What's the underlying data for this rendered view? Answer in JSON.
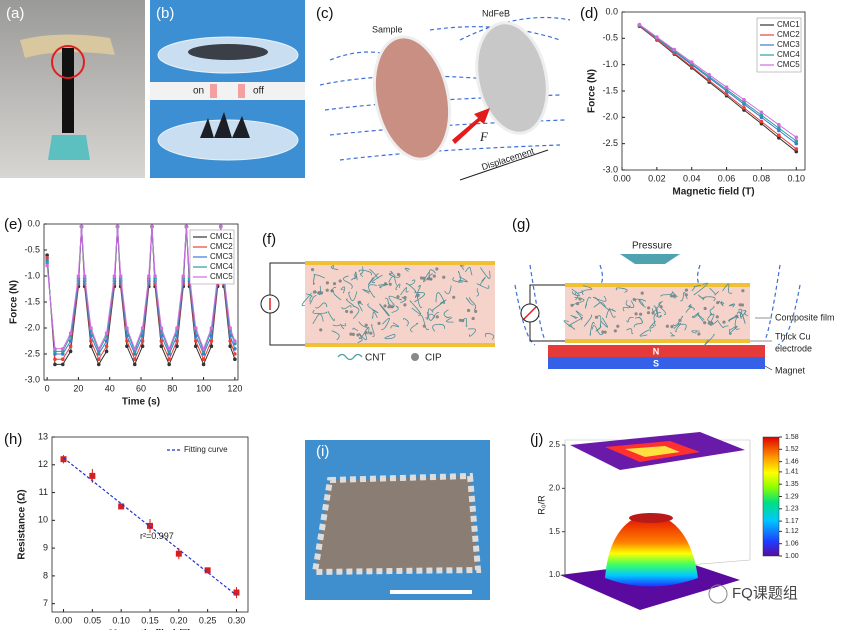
{
  "figure": {
    "panel_labels": [
      "(a)",
      "(b)",
      "(c)",
      "(d)",
      "(e)",
      "(f)",
      "(g)",
      "(h)",
      "(i)",
      "(j)"
    ],
    "b": {
      "on": "on",
      "off": "off"
    },
    "c": {
      "sample": "Sample",
      "magnet": "NdFeB",
      "force": "F",
      "displacement": "Displacement"
    },
    "f": {
      "cnt": "CNT",
      "cip": "CIP"
    },
    "g": {
      "pressure": "Pressure",
      "film": "Composite film",
      "electrode": [
        "Thick Cu",
        "electrode"
      ],
      "magnet": "Magnet",
      "north": "N",
      "south": "S"
    },
    "watermark": "FQ课题组"
  },
  "chart_data": [
    {
      "type": "line",
      "xlabel": "Magnetic field (T)",
      "ylabel": "Force (N)",
      "legend": "upper right",
      "x": [
        0.01,
        0.02,
        0.03,
        0.04,
        0.05,
        0.06,
        0.07,
        0.08,
        0.09,
        0.1
      ],
      "xlim": [
        0,
        0.105
      ],
      "ylim": [
        -3.0,
        0.0
      ],
      "xticks": [
        {
          "value": 0,
          "label": "0.00"
        },
        {
          "value": 0.02,
          "label": "0.02"
        },
        {
          "value": 0.04,
          "label": "0.04"
        },
        {
          "value": 0.06,
          "label": "0.06"
        },
        {
          "value": 0.08,
          "label": "0.08"
        },
        {
          "value": 0.1,
          "label": "0.10"
        }
      ],
      "yticks": [
        {
          "value": -3,
          "label": "-3.0"
        },
        {
          "value": -2.5,
          "label": "-2.5"
        },
        {
          "value": -2,
          "label": "-2.0"
        },
        {
          "value": -1.5,
          "label": "-1.5"
        },
        {
          "value": -1,
          "label": "-1.0"
        },
        {
          "value": -0.5,
          "label": "-0.5"
        },
        {
          "value": 0,
          "label": "0.0"
        }
      ],
      "series": [
        {
          "name": "CMC1",
          "color": "#333333",
          "values": [
            -0.27,
            -0.53,
            -0.8,
            -1.06,
            -1.33,
            -1.59,
            -1.86,
            -2.12,
            -2.39,
            -2.65
          ]
        },
        {
          "name": "CMC2",
          "color": "#e8413a",
          "values": [
            -0.26,
            -0.52,
            -0.78,
            -1.04,
            -1.3,
            -1.56,
            -1.82,
            -2.08,
            -2.34,
            -2.6
          ]
        },
        {
          "name": "CMC3",
          "color": "#3a7bd5",
          "values": [
            -0.25,
            -0.5,
            -0.75,
            -1.0,
            -1.25,
            -1.5,
            -1.75,
            -2.0,
            -2.25,
            -2.5
          ]
        },
        {
          "name": "CMC4",
          "color": "#2aa198",
          "values": [
            -0.245,
            -0.49,
            -0.735,
            -0.98,
            -1.225,
            -1.47,
            -1.715,
            -1.96,
            -2.205,
            -2.45
          ]
        },
        {
          "name": "CMC5",
          "color": "#d36ce0",
          "values": [
            -0.238,
            -0.476,
            -0.714,
            -0.952,
            -1.19,
            -1.428,
            -1.666,
            -1.904,
            -2.142,
            -2.38
          ]
        }
      ]
    },
    {
      "type": "line",
      "xlabel": "Time (s)",
      "ylabel": "Force (N)",
      "legend": "upper right",
      "x": [
        0,
        5,
        10,
        15,
        20,
        22,
        24,
        28,
        33,
        38,
        43,
        45,
        47,
        51,
        56,
        61,
        65,
        67,
        69,
        73,
        78,
        83,
        87,
        89,
        91,
        95,
        100,
        105,
        109,
        111,
        113,
        117,
        120
      ],
      "xlim": [
        -2,
        122
      ],
      "ylim": [
        -3.0,
        0.0
      ],
      "xticks": [
        0,
        20,
        40,
        60,
        80,
        100,
        120
      ],
      "yticks": [
        {
          "value": -3,
          "label": "-3.0"
        },
        {
          "value": -2.5,
          "label": "-2.5"
        },
        {
          "value": -2,
          "label": "-2.0"
        },
        {
          "value": -1.5,
          "label": "-1.5"
        },
        {
          "value": -1,
          "label": "-1.0"
        },
        {
          "value": -0.5,
          "label": "-0.5"
        },
        {
          "value": 0,
          "label": "0.0"
        }
      ],
      "series": [
        {
          "name": "CMC1",
          "color": "#333333",
          "values": [
            -0.6,
            -2.7,
            -2.7,
            -2.45,
            -1.2,
            -0.05,
            -1.2,
            -2.35,
            -2.7,
            -2.45,
            -1.2,
            -0.05,
            -1.2,
            -2.35,
            -2.7,
            -2.35,
            -1.2,
            -0.05,
            -1.2,
            -2.35,
            -2.7,
            -2.35,
            -1.2,
            -0.05,
            -1.2,
            -2.35,
            -2.7,
            -2.35,
            -1.2,
            -0.05,
            -1.2,
            -2.35,
            -2.6
          ]
        },
        {
          "name": "CMC2",
          "color": "#e8413a",
          "values": [
            -0.65,
            -2.6,
            -2.6,
            -2.35,
            -1.15,
            -0.05,
            -1.15,
            -2.25,
            -2.6,
            -2.35,
            -1.15,
            -0.05,
            -1.15,
            -2.25,
            -2.6,
            -2.25,
            -1.15,
            -0.05,
            -1.15,
            -2.25,
            -2.6,
            -2.25,
            -1.15,
            -0.05,
            -1.15,
            -2.25,
            -2.6,
            -2.25,
            -1.15,
            -0.05,
            -1.15,
            -2.25,
            -2.5
          ]
        },
        {
          "name": "CMC3",
          "color": "#3a7bd5",
          "values": [
            -0.7,
            -2.5,
            -2.5,
            -2.25,
            -1.1,
            -0.05,
            -1.1,
            -2.15,
            -2.5,
            -2.25,
            -1.1,
            -0.05,
            -1.1,
            -2.15,
            -2.5,
            -2.15,
            -1.1,
            -0.05,
            -1.1,
            -2.15,
            -2.5,
            -2.15,
            -1.1,
            -0.05,
            -1.1,
            -2.15,
            -2.5,
            -2.15,
            -1.1,
            -0.05,
            -1.1,
            -2.15,
            -2.4
          ]
        },
        {
          "name": "CMC4",
          "color": "#2aa198",
          "values": [
            -0.75,
            -2.45,
            -2.45,
            -2.15,
            -1.05,
            -0.05,
            -1.05,
            -2.05,
            -2.45,
            -2.15,
            -1.05,
            -0.05,
            -1.05,
            -2.05,
            -2.45,
            -2.05,
            -1.05,
            -0.05,
            -1.05,
            -2.05,
            -2.45,
            -2.05,
            -1.05,
            -0.05,
            -1.05,
            -2.05,
            -2.45,
            -2.05,
            -1.05,
            -0.05,
            -1.05,
            -2.05,
            -2.3
          ]
        },
        {
          "name": "CMC5",
          "color": "#d36ce0",
          "values": [
            -0.8,
            -2.4,
            -2.4,
            -2.1,
            -1.0,
            -0.05,
            -1.0,
            -2.0,
            -2.4,
            -2.1,
            -1.0,
            -0.05,
            -1.0,
            -2.0,
            -2.4,
            -2.0,
            -1.0,
            -0.05,
            -1.0,
            -2.0,
            -2.4,
            -2.0,
            -1.0,
            -0.05,
            -1.0,
            -2.0,
            -2.4,
            -2.0,
            -1.0,
            -0.05,
            -1.0,
            -2.0,
            -2.25
          ]
        }
      ]
    },
    {
      "type": "scatter",
      "xlabel": "Magnetic filed (T)",
      "ylabel": "Resistance (Ω)",
      "legend": "upper right",
      "annotation": "r²=0.997",
      "x": [
        0,
        0.05,
        0.1,
        0.15,
        0.2,
        0.25,
        0.3
      ],
      "xlim": [
        -0.02,
        0.32
      ],
      "ylim": [
        6.7,
        13
      ],
      "xticks": [
        {
          "value": 0,
          "label": "0.00"
        },
        {
          "value": 0.05,
          "label": "0.05"
        },
        {
          "value": 0.1,
          "label": "0.10"
        },
        {
          "value": 0.15,
          "label": "0.15"
        },
        {
          "value": 0.2,
          "label": "0.20"
        },
        {
          "value": 0.25,
          "label": "0.25"
        },
        {
          "value": 0.3,
          "label": "0.30"
        }
      ],
      "yticks": [
        7,
        8,
        9,
        10,
        11,
        12,
        13
      ],
      "series": [
        {
          "color": "#d62020",
          "values": [
            12.2,
            11.6,
            10.5,
            9.8,
            8.8,
            8.2,
            7.4
          ],
          "errors": [
            0.15,
            0.25,
            0.1,
            0.25,
            0.2,
            0.05,
            0.2
          ]
        }
      ],
      "fit": {
        "name": "Fitting curve",
        "color": "#2233cc",
        "x": [
          0,
          0.3
        ],
        "values": [
          12.25,
          7.3
        ]
      }
    },
    {
      "type": "surface3d",
      "zlabel": "R₀/R",
      "zlim": [
        1.0,
        2.5
      ],
      "zticks": [
        {
          "value": 1,
          "label": "1.0"
        },
        {
          "value": 1.5,
          "label": "1.5"
        },
        {
          "value": 2,
          "label": "2.0"
        },
        {
          "value": 2.5,
          "label": "2.5"
        }
      ],
      "colorbar_lim": [
        1.0,
        1.58
      ],
      "colorbar_ticks": [
        {
          "value": 1,
          "label": "1.00"
        },
        1.06,
        1.12,
        1.17,
        1.23,
        1.29,
        1.35,
        1.41,
        1.46,
        1.52,
        1.58
      ]
    }
  ]
}
